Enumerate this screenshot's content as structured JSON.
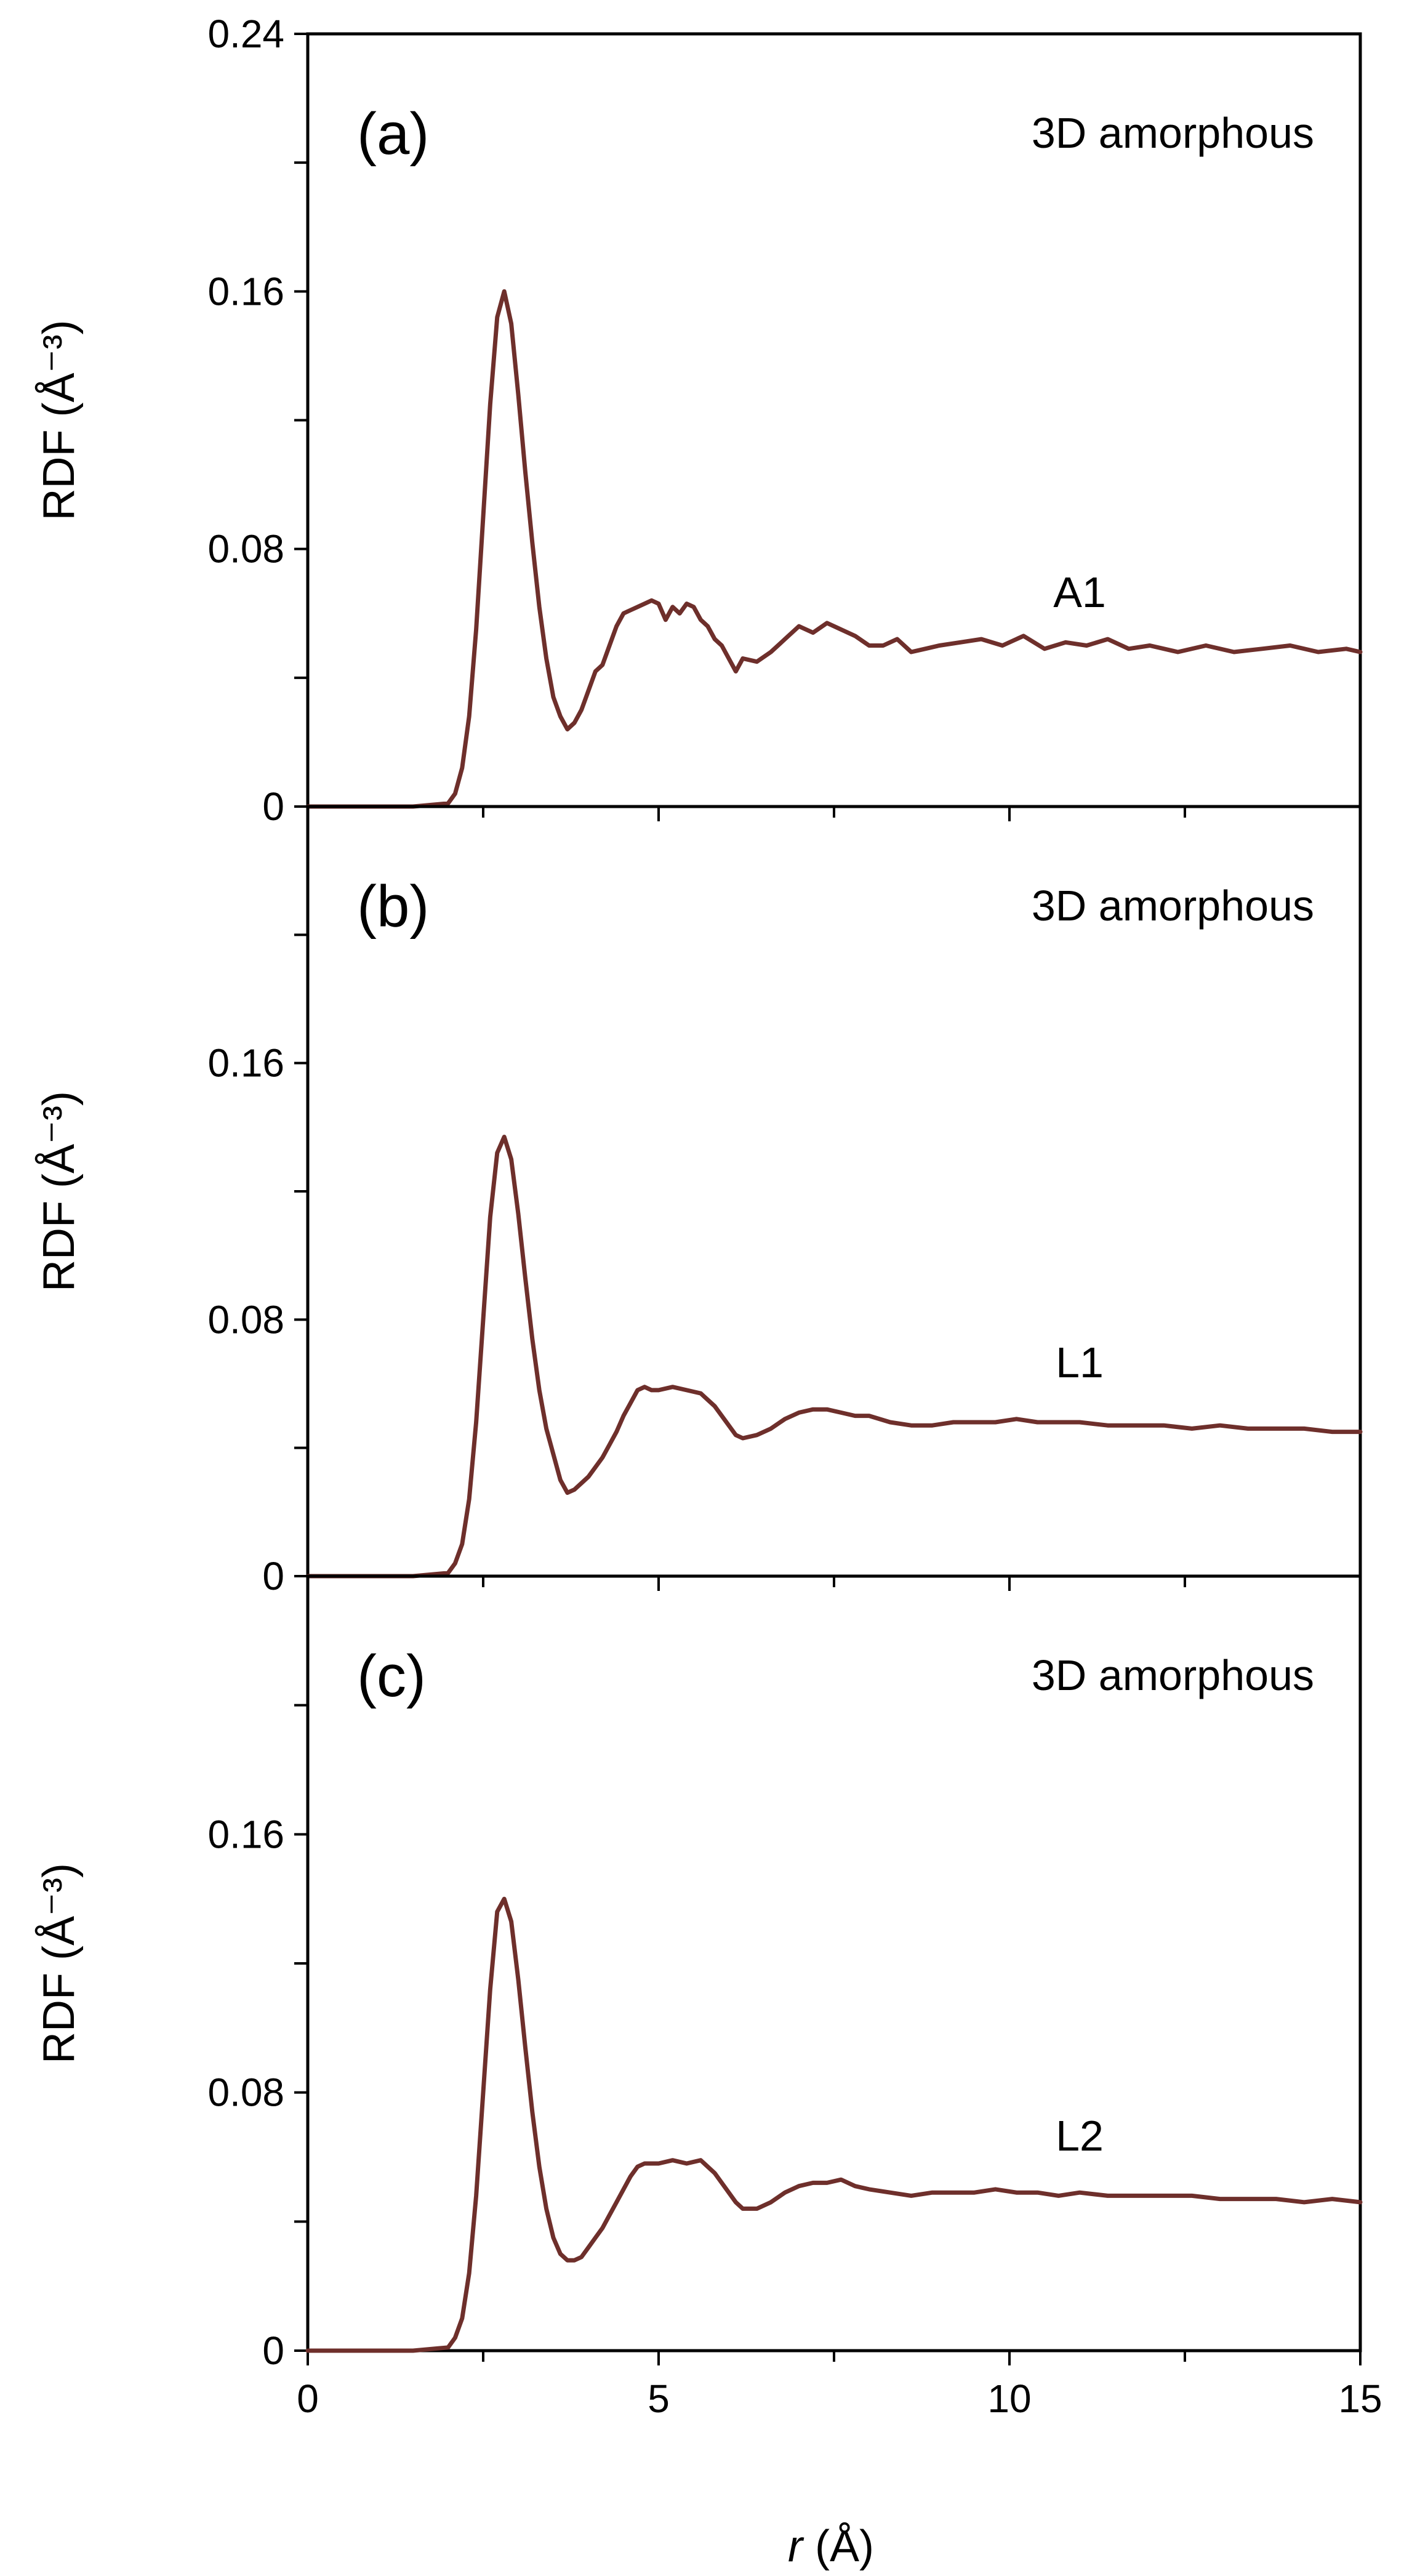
{
  "chart_data": [
    {
      "type": "line",
      "panel_label": "(a)",
      "annotation": "3D amorphous",
      "series": [
        {
          "name": "A1",
          "color": "#6e2f2b",
          "x": [
            0,
            1.5,
            2.0,
            2.1,
            2.2,
            2.3,
            2.4,
            2.5,
            2.6,
            2.7,
            2.8,
            2.9,
            3.0,
            3.1,
            3.2,
            3.3,
            3.4,
            3.5,
            3.6,
            3.7,
            3.8,
            3.9,
            4.0,
            4.1,
            4.2,
            4.3,
            4.4,
            4.5,
            4.6,
            4.7,
            4.8,
            4.9,
            5.0,
            5.1,
            5.2,
            5.3,
            5.4,
            5.5,
            5.6,
            5.7,
            5.8,
            5.9,
            6.0,
            6.1,
            6.2,
            6.4,
            6.6,
            6.8,
            7.0,
            7.2,
            7.4,
            7.6,
            7.8,
            8.0,
            8.2,
            8.4,
            8.6,
            8.8,
            9.0,
            9.3,
            9.6,
            9.9,
            10.2,
            10.5,
            10.8,
            11.1,
            11.4,
            11.7,
            12.0,
            12.4,
            12.8,
            13.2,
            13.6,
            14.0,
            14.4,
            14.8,
            15.0
          ],
          "y": [
            0,
            0,
            0.001,
            0.004,
            0.012,
            0.028,
            0.055,
            0.09,
            0.125,
            0.152,
            0.16,
            0.15,
            0.128,
            0.104,
            0.082,
            0.062,
            0.046,
            0.034,
            0.028,
            0.024,
            0.026,
            0.03,
            0.036,
            0.042,
            0.044,
            0.05,
            0.056,
            0.06,
            0.061,
            0.062,
            0.063,
            0.064,
            0.063,
            0.058,
            0.062,
            0.06,
            0.063,
            0.062,
            0.058,
            0.056,
            0.052,
            0.05,
            0.046,
            0.042,
            0.046,
            0.045,
            0.048,
            0.052,
            0.056,
            0.054,
            0.057,
            0.055,
            0.053,
            0.05,
            0.05,
            0.052,
            0.048,
            0.049,
            0.05,
            0.051,
            0.052,
            0.05,
            0.053,
            0.049,
            0.051,
            0.05,
            0.052,
            0.049,
            0.05,
            0.048,
            0.05,
            0.048,
            0.049,
            0.05,
            0.048,
            0.049,
            0.048
          ]
        }
      ],
      "xlim": [
        0,
        15
      ],
      "ylim": [
        0,
        0.24
      ],
      "y_ticks": [
        "0",
        "0.08",
        "0.16",
        "0.24"
      ],
      "y_tick_values": [
        0,
        0.08,
        0.16,
        0.24
      ],
      "ylabel": "RDF (Å⁻³)"
    },
    {
      "type": "line",
      "panel_label": "(b)",
      "annotation": "3D amorphous",
      "series": [
        {
          "name": "L1",
          "color": "#6e2f2b",
          "x": [
            0,
            1.5,
            2.0,
            2.1,
            2.2,
            2.3,
            2.4,
            2.5,
            2.6,
            2.7,
            2.8,
            2.9,
            3.0,
            3.1,
            3.2,
            3.3,
            3.4,
            3.5,
            3.6,
            3.7,
            3.8,
            3.9,
            4.0,
            4.1,
            4.2,
            4.3,
            4.4,
            4.5,
            4.6,
            4.7,
            4.8,
            4.9,
            5.0,
            5.2,
            5.4,
            5.6,
            5.8,
            6.0,
            6.1,
            6.2,
            6.4,
            6.6,
            6.8,
            7.0,
            7.2,
            7.4,
            7.6,
            7.8,
            8.0,
            8.3,
            8.6,
            8.9,
            9.2,
            9.5,
            9.8,
            10.1,
            10.4,
            10.7,
            11.0,
            11.4,
            11.8,
            12.2,
            12.6,
            13.0,
            13.4,
            13.8,
            14.2,
            14.6,
            15.0
          ],
          "y": [
            0,
            0,
            0.001,
            0.004,
            0.01,
            0.024,
            0.048,
            0.08,
            0.112,
            0.132,
            0.137,
            0.13,
            0.113,
            0.093,
            0.074,
            0.058,
            0.046,
            0.038,
            0.03,
            0.026,
            0.027,
            0.029,
            0.031,
            0.034,
            0.037,
            0.041,
            0.045,
            0.05,
            0.054,
            0.058,
            0.059,
            0.058,
            0.058,
            0.059,
            0.058,
            0.057,
            0.053,
            0.047,
            0.044,
            0.043,
            0.044,
            0.046,
            0.049,
            0.051,
            0.052,
            0.052,
            0.051,
            0.05,
            0.05,
            0.048,
            0.047,
            0.047,
            0.048,
            0.048,
            0.048,
            0.049,
            0.048,
            0.048,
            0.048,
            0.047,
            0.047,
            0.047,
            0.046,
            0.047,
            0.046,
            0.046,
            0.046,
            0.045,
            0.045
          ]
        }
      ],
      "xlim": [
        0,
        15
      ],
      "ylim": [
        0,
        0.24
      ],
      "y_ticks": [
        "0",
        "0.08",
        "0.16"
      ],
      "y_tick_values": [
        0,
        0.08,
        0.16
      ],
      "ylabel": "RDF (Å⁻³)"
    },
    {
      "type": "line",
      "panel_label": "(c)",
      "annotation": "3D amorphous",
      "series": [
        {
          "name": "L2",
          "color": "#6e2f2b",
          "x": [
            0,
            1.5,
            2.0,
            2.1,
            2.2,
            2.3,
            2.4,
            2.5,
            2.6,
            2.7,
            2.8,
            2.9,
            3.0,
            3.1,
            3.2,
            3.3,
            3.4,
            3.5,
            3.6,
            3.7,
            3.8,
            3.9,
            4.0,
            4.1,
            4.2,
            4.3,
            4.4,
            4.5,
            4.6,
            4.7,
            4.8,
            4.9,
            5.0,
            5.2,
            5.4,
            5.6,
            5.8,
            6.0,
            6.1,
            6.2,
            6.4,
            6.6,
            6.8,
            7.0,
            7.2,
            7.4,
            7.6,
            7.8,
            8.0,
            8.3,
            8.6,
            8.9,
            9.2,
            9.5,
            9.8,
            10.1,
            10.4,
            10.7,
            11.0,
            11.4,
            11.8,
            12.2,
            12.6,
            13.0,
            13.4,
            13.8,
            14.2,
            14.6,
            15.0
          ],
          "y": [
            0,
            0,
            0.001,
            0.004,
            0.01,
            0.024,
            0.048,
            0.08,
            0.112,
            0.136,
            0.14,
            0.133,
            0.115,
            0.094,
            0.074,
            0.057,
            0.044,
            0.035,
            0.03,
            0.028,
            0.028,
            0.029,
            0.032,
            0.035,
            0.038,
            0.042,
            0.046,
            0.05,
            0.054,
            0.057,
            0.058,
            0.058,
            0.058,
            0.059,
            0.058,
            0.059,
            0.055,
            0.049,
            0.046,
            0.044,
            0.044,
            0.046,
            0.049,
            0.051,
            0.052,
            0.052,
            0.053,
            0.051,
            0.05,
            0.049,
            0.048,
            0.049,
            0.049,
            0.049,
            0.05,
            0.049,
            0.049,
            0.048,
            0.049,
            0.048,
            0.048,
            0.048,
            0.048,
            0.047,
            0.047,
            0.047,
            0.046,
            0.047,
            0.046
          ]
        }
      ],
      "xlim": [
        0,
        15
      ],
      "ylim": [
        0,
        0.24
      ],
      "y_ticks": [
        "0",
        "0.08",
        "0.16"
      ],
      "y_tick_values": [
        0,
        0.08,
        0.16
      ],
      "ylabel": "RDF (Å⁻³)",
      "x_ticks": [
        "0",
        "5",
        "10",
        "15"
      ],
      "x_tick_values": [
        0,
        5,
        10,
        15
      ]
    }
  ],
  "xlabel_var": "r",
  "xlabel_unit": " (Å)"
}
